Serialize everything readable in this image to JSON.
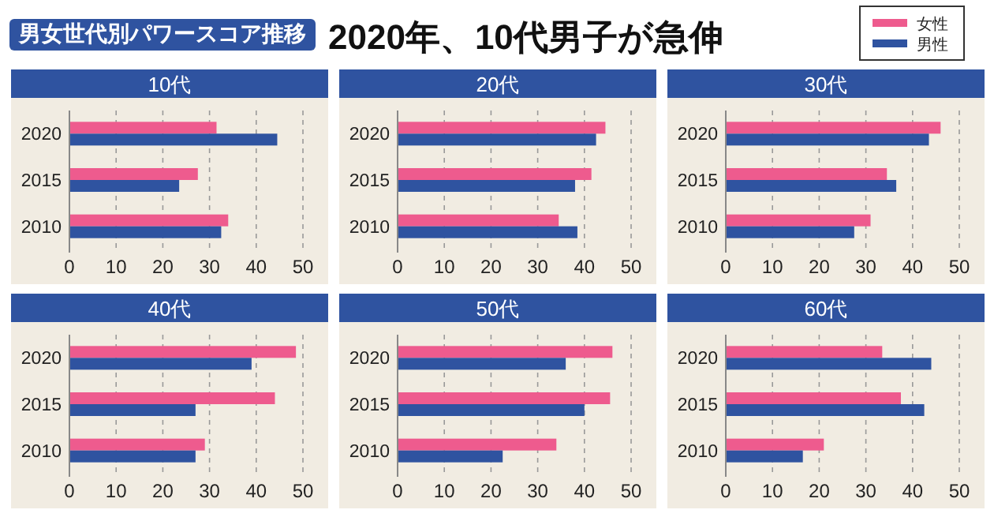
{
  "chart_data": [
    {
      "type": "other",
      "title": "男女世代別パワースコア推移",
      "subtitle": "2020年、10代男子が急伸"
    },
    {
      "type": "bar",
      "orientation": "horizontal",
      "title": "10代",
      "categories": [
        "2020",
        "2015",
        "2010"
      ],
      "xlim": [
        0,
        50
      ],
      "xticks": [
        0,
        10,
        20,
        30,
        40,
        50
      ],
      "grid": "x",
      "legend": "top right",
      "series": [
        {
          "name": "女性",
          "color": "#ee5b8e",
          "values": [
            31.5,
            27.5,
            34
          ]
        },
        {
          "name": "男性",
          "color": "#2f53a0",
          "values": [
            44.5,
            23.5,
            32.5
          ]
        }
      ]
    },
    {
      "type": "bar",
      "orientation": "horizontal",
      "title": "20代",
      "categories": [
        "2020",
        "2015",
        "2010"
      ],
      "xlim": [
        0,
        50
      ],
      "xticks": [
        0,
        10,
        20,
        30,
        40,
        50
      ],
      "grid": "x",
      "series": [
        {
          "color": "#ee5b8e",
          "values": [
            44.5,
            41.5,
            34.5
          ]
        },
        {
          "color": "#2f53a0",
          "values": [
            42.5,
            38,
            38.5
          ]
        }
      ]
    },
    {
      "type": "bar",
      "orientation": "horizontal",
      "title": "30代",
      "categories": [
        "2020",
        "2015",
        "2010"
      ],
      "xlim": [
        0,
        50
      ],
      "xticks": [
        0,
        10,
        20,
        30,
        40,
        50
      ],
      "grid": "x",
      "series": [
        {
          "color": "#ee5b8e",
          "values": [
            46,
            34.5,
            31
          ]
        },
        {
          "color": "#2f53a0",
          "values": [
            43.5,
            36.5,
            27.5
          ]
        }
      ]
    },
    {
      "type": "bar",
      "orientation": "horizontal",
      "title": "40代",
      "categories": [
        "2020",
        "2015",
        "2010"
      ],
      "xlim": [
        0,
        50
      ],
      "xticks": [
        0,
        10,
        20,
        30,
        40,
        50
      ],
      "grid": "x",
      "series": [
        {
          "color": "#ee5b8e",
          "values": [
            48.5,
            44,
            29
          ]
        },
        {
          "color": "#2f53a0",
          "values": [
            39,
            27,
            27
          ]
        }
      ]
    },
    {
      "type": "bar",
      "orientation": "horizontal",
      "title": "50代",
      "categories": [
        "2020",
        "2015",
        "2010"
      ],
      "xlim": [
        0,
        50
      ],
      "xticks": [
        0,
        10,
        20,
        30,
        40,
        50
      ],
      "grid": "x",
      "series": [
        {
          "color": "#ee5b8e",
          "values": [
            46,
            45.5,
            34
          ]
        },
        {
          "color": "#2f53a0",
          "values": [
            36,
            40,
            22.5
          ]
        }
      ]
    },
    {
      "type": "bar",
      "orientation": "horizontal",
      "title": "60代",
      "categories": [
        "2020",
        "2015",
        "2010"
      ],
      "xlim": [
        0,
        50
      ],
      "xticks": [
        0,
        10,
        20,
        30,
        40,
        50
      ],
      "grid": "x",
      "series": [
        {
          "color": "#ee5b8e",
          "values": [
            33.5,
            37.5,
            21
          ]
        },
        {
          "color": "#2f53a0",
          "values": [
            44,
            42.5,
            16.5
          ]
        }
      ]
    }
  ]
}
